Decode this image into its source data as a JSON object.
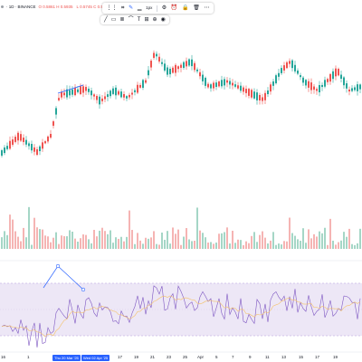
{
  "header": {
    "symbol": "· 1D · BINANCE",
    "values": [
      "O 0.5861 H 0.5935",
      "L 0.5745 C 0.5804",
      "-0.0057 (-0.97%)"
    ]
  },
  "toolbar_primary": [
    {
      "icon": "drag-handle-icon",
      "glyph": "⋮⋮"
    },
    {
      "icon": "template-icon",
      "glyph": "⌗"
    },
    {
      "icon": "pencil-icon",
      "glyph": "✎"
    },
    {
      "icon": "line-color-icon",
      "glyph": "▁"
    },
    {
      "icon": "line-width",
      "glyph": "1px"
    },
    {
      "icon": "settings-icon",
      "glyph": "⚙"
    },
    {
      "icon": "alert-icon",
      "glyph": "⏰"
    },
    {
      "icon": "lock-icon",
      "glyph": "🔒"
    },
    {
      "icon": "delete-icon",
      "glyph": "🗑"
    },
    {
      "icon": "more-icon",
      "glyph": "⋯"
    }
  ],
  "toolbar_secondary": [
    {
      "icon": "trend-line-icon",
      "glyph": "╱"
    },
    {
      "icon": "rectangle-icon",
      "glyph": "▭"
    },
    {
      "icon": "fib-icon",
      "glyph": "≣"
    },
    {
      "icon": "brush-icon",
      "glyph": "⌒"
    },
    {
      "icon": "text-icon",
      "glyph": "T"
    },
    {
      "icon": "measure-icon",
      "glyph": "⊞"
    },
    {
      "icon": "zoom-icon",
      "glyph": "⊕"
    },
    {
      "icon": "eye-icon",
      "glyph": "◉"
    }
  ],
  "xaxis": {
    "ticks": [
      "16",
      "1",
      "5",
      "9",
      "17",
      "19",
      "21",
      "23",
      "25",
      "Apr",
      "5",
      "7",
      "9",
      "11",
      "13",
      "15",
      "17",
      "19"
    ],
    "range_start": "Thu 20 Mar '25",
    "range_end": "Wed 02 Apr '25"
  },
  "chart_data": {
    "type": "candlestick",
    "colors": {
      "up": "#26a69a",
      "down": "#ef5350",
      "rsi": "#7e57c2",
      "rsi_ma": "#f4c26b",
      "band": "#ede7f6",
      "drawing": "#2962ff"
    },
    "price_seed": 7,
    "rsi_band": [
      30,
      70
    ]
  }
}
